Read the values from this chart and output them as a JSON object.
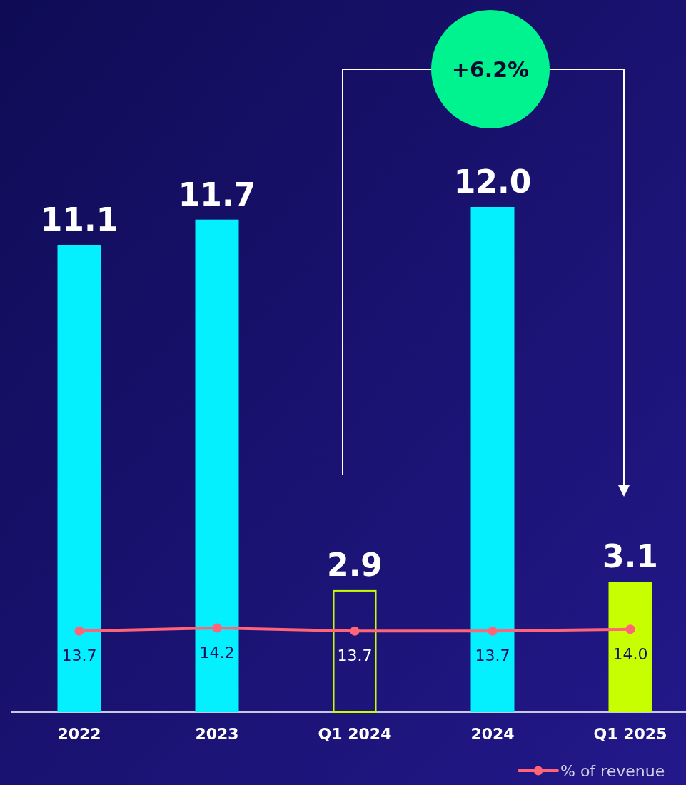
{
  "chart_data": {
    "type": "bar",
    "categories": [
      "2022",
      "2023",
      "Q1 2024",
      "2024",
      "Q1 2025"
    ],
    "legend": "bottom right",
    "annotations": [
      "+6.2%"
    ],
    "series": [
      {
        "color": "#c8ff00",
        "colors": [
          "#05f0ff",
          "#05f0ff",
          null,
          "#05f0ff",
          "#c8ff00"
        ],
        "values": [
          11.1,
          11.7,
          2.9,
          12.0,
          3.1
        ],
        "value_labels": [
          "11.1",
          "11.7",
          "2.9",
          "12.0",
          "3.1"
        ]
      },
      {
        "type": "line",
        "name": "% of revenue",
        "color": "#ff6478",
        "axis": "y2",
        "marker": "circle",
        "values": [
          13.7,
          14.2,
          13.7,
          13.7,
          14.0
        ],
        "value_labels": [
          "13.7",
          "14.2",
          "13.7",
          "13.7",
          "14.0"
        ]
      }
    ]
  }
}
